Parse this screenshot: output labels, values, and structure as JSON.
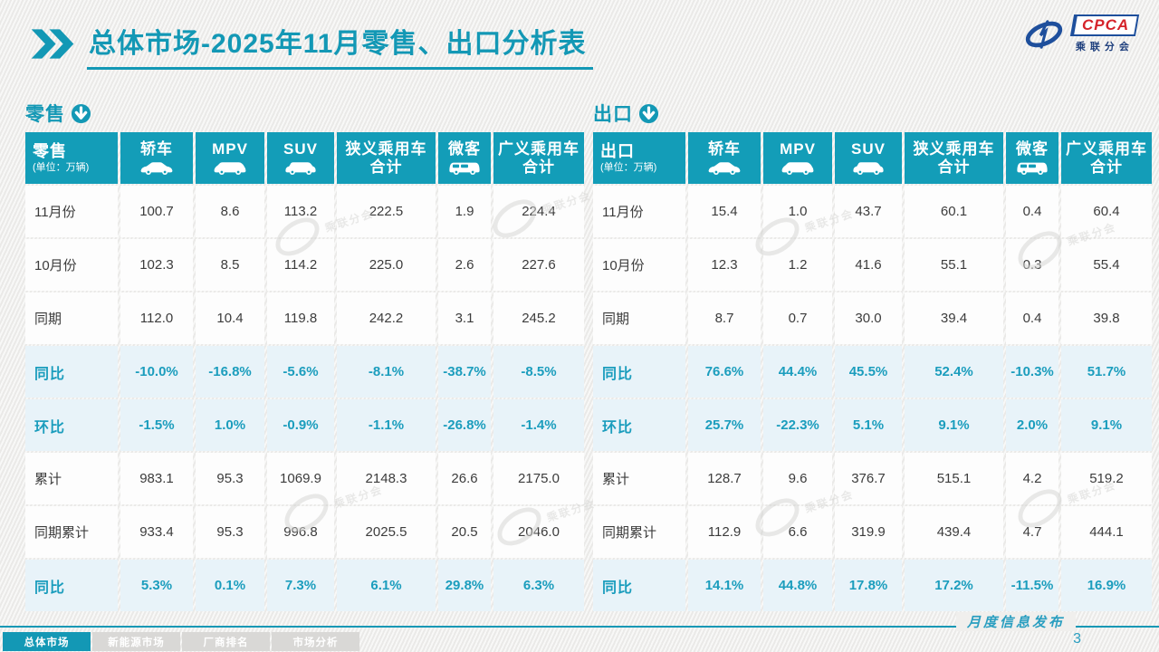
{
  "page": {
    "title_main": "总体市场",
    "title_rest": "-2025年11月零售、出口分析表",
    "footer_note": "月度信息发布",
    "page_number": "3",
    "watermark_text": "乘联分会"
  },
  "logo": {
    "acronym": "CPCA",
    "name": "乘联分会"
  },
  "columns": [
    {
      "line1": "轿车",
      "line2": "",
      "icon": "sedan-icon"
    },
    {
      "line1": "MPV",
      "line2": "",
      "icon": "mpv-icon"
    },
    {
      "line1": "SUV",
      "line2": "",
      "icon": "suv-icon"
    },
    {
      "line1": "狭义乘用车",
      "line2": "合计",
      "icon": ""
    },
    {
      "line1": "微客",
      "line2": "",
      "icon": "microvan-icon"
    },
    {
      "line1": "广义乘用车",
      "line2": "合计",
      "icon": ""
    }
  ],
  "retail": {
    "section_label": "零售",
    "unit": "(单位：万辆)",
    "rows": [
      {
        "label": "11月份",
        "highlight": false,
        "values": [
          "100.7",
          "8.6",
          "113.2",
          "222.5",
          "1.9",
          "224.4"
        ]
      },
      {
        "label": "10月份",
        "highlight": false,
        "values": [
          "102.3",
          "8.5",
          "114.2",
          "225.0",
          "2.6",
          "227.6"
        ]
      },
      {
        "label": "同期",
        "highlight": false,
        "values": [
          "112.0",
          "10.4",
          "119.8",
          "242.2",
          "3.1",
          "245.2"
        ]
      },
      {
        "label": "同比",
        "highlight": true,
        "values": [
          "-10.0%",
          "-16.8%",
          "-5.6%",
          "-8.1%",
          "-38.7%",
          "-8.5%"
        ]
      },
      {
        "label": "环比",
        "highlight": true,
        "values": [
          "-1.5%",
          "1.0%",
          "-0.9%",
          "-1.1%",
          "-26.8%",
          "-1.4%"
        ]
      },
      {
        "label": "累计",
        "highlight": false,
        "values": [
          "983.1",
          "95.3",
          "1069.9",
          "2148.3",
          "26.6",
          "2175.0"
        ]
      },
      {
        "label": "同期累计",
        "highlight": false,
        "values": [
          "933.4",
          "95.3",
          "996.8",
          "2025.5",
          "20.5",
          "2046.0"
        ]
      },
      {
        "label": "同比",
        "highlight": true,
        "values": [
          "5.3%",
          "0.1%",
          "7.3%",
          "6.1%",
          "29.8%",
          "6.3%"
        ]
      }
    ]
  },
  "export": {
    "section_label": "出口",
    "unit": "(单位：万辆)",
    "rows": [
      {
        "label": "11月份",
        "highlight": false,
        "values": [
          "15.4",
          "1.0",
          "43.7",
          "60.1",
          "0.4",
          "60.4"
        ]
      },
      {
        "label": "10月份",
        "highlight": false,
        "values": [
          "12.3",
          "1.2",
          "41.6",
          "55.1",
          "0.3",
          "55.4"
        ]
      },
      {
        "label": "同期",
        "highlight": false,
        "values": [
          "8.7",
          "0.7",
          "30.0",
          "39.4",
          "0.4",
          "39.8"
        ]
      },
      {
        "label": "同比",
        "highlight": true,
        "values": [
          "76.6%",
          "44.4%",
          "45.5%",
          "52.4%",
          "-10.3%",
          "51.7%"
        ]
      },
      {
        "label": "环比",
        "highlight": true,
        "values": [
          "25.7%",
          "-22.3%",
          "5.1%",
          "9.1%",
          "2.0%",
          "9.1%"
        ]
      },
      {
        "label": "累计",
        "highlight": false,
        "values": [
          "128.7",
          "9.6",
          "376.7",
          "515.1",
          "4.2",
          "519.2"
        ]
      },
      {
        "label": "同期累计",
        "highlight": false,
        "values": [
          "112.9",
          "6.6",
          "319.9",
          "439.4",
          "4.7",
          "444.1"
        ]
      },
      {
        "label": "同比",
        "highlight": true,
        "values": [
          "14.1%",
          "44.8%",
          "17.8%",
          "17.2%",
          "-11.5%",
          "16.9%"
        ]
      }
    ]
  },
  "tabs": [
    {
      "label": "总体市场",
      "active": true
    },
    {
      "label": "新能源市场",
      "active": false
    },
    {
      "label": "厂商排名",
      "active": false
    },
    {
      "label": "市场分析",
      "active": false
    }
  ],
  "chart_data": [
    {
      "type": "table",
      "title": "零售 (单位：万辆)",
      "columns": [
        "轿车",
        "MPV",
        "SUV",
        "狭义乘用车合计",
        "微客",
        "广义乘用车合计"
      ],
      "rows": {
        "11月份": [
          100.7,
          8.6,
          113.2,
          222.5,
          1.9,
          224.4
        ],
        "10月份": [
          102.3,
          8.5,
          114.2,
          225.0,
          2.6,
          227.6
        ],
        "同期": [
          112.0,
          10.4,
          119.8,
          242.2,
          3.1,
          245.2
        ],
        "同比": [
          "-10.0%",
          "-16.8%",
          "-5.6%",
          "-8.1%",
          "-38.7%",
          "-8.5%"
        ],
        "环比": [
          "-1.5%",
          "1.0%",
          "-0.9%",
          "-1.1%",
          "-26.8%",
          "-1.4%"
        ],
        "累计": [
          983.1,
          95.3,
          1069.9,
          2148.3,
          26.6,
          2175.0
        ],
        "同期累计": [
          933.4,
          95.3,
          996.8,
          2025.5,
          20.5,
          2046.0
        ],
        "累计同比": [
          "5.3%",
          "0.1%",
          "7.3%",
          "6.1%",
          "29.8%",
          "6.3%"
        ]
      }
    },
    {
      "type": "table",
      "title": "出口 (单位：万辆)",
      "columns": [
        "轿车",
        "MPV",
        "SUV",
        "狭义乘用车合计",
        "微客",
        "广义乘用车合计"
      ],
      "rows": {
        "11月份": [
          15.4,
          1.0,
          43.7,
          60.1,
          0.4,
          60.4
        ],
        "10月份": [
          12.3,
          1.2,
          41.6,
          55.1,
          0.3,
          55.4
        ],
        "同期": [
          8.7,
          0.7,
          30.0,
          39.4,
          0.4,
          39.8
        ],
        "同比": [
          "76.6%",
          "44.4%",
          "45.5%",
          "52.4%",
          "-10.3%",
          "51.7%"
        ],
        "环比": [
          "25.7%",
          "-22.3%",
          "5.1%",
          "9.1%",
          "2.0%",
          "9.1%"
        ],
        "累计": [
          128.7,
          9.6,
          376.7,
          515.1,
          4.2,
          519.2
        ],
        "同期累计": [
          112.9,
          6.6,
          319.9,
          439.4,
          4.7,
          444.1
        ],
        "累计同比": [
          "14.1%",
          "44.8%",
          "17.8%",
          "17.2%",
          "-11.5%",
          "16.9%"
        ]
      }
    }
  ],
  "colors": {
    "accent": "#139db8",
    "highlight_bg": "#e8f3f9",
    "logo_red": "#d5232a",
    "logo_blue": "#1e4f9c"
  }
}
